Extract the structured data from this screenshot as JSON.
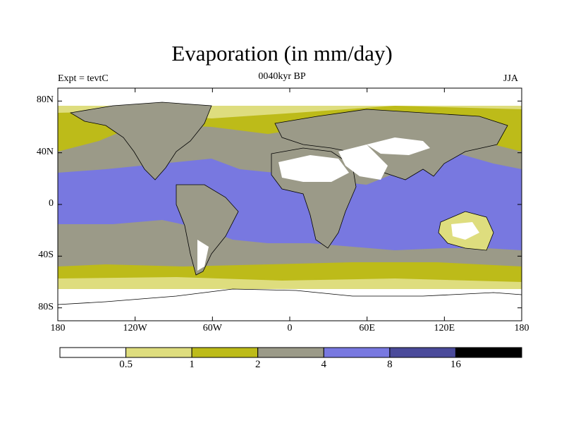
{
  "chart_data": {
    "type": "heatmap",
    "title": "Evaporation (in mm/day)",
    "subtitle": "0040kyr BP",
    "left_label": "Expt = tevtC",
    "right_label": "JJA",
    "projection": "cylindrical equidistant global map",
    "x_ticks": [
      "180",
      "120W",
      "60W",
      "0",
      "60E",
      "120E",
      "180"
    ],
    "x_values": [
      -180,
      -120,
      -60,
      0,
      60,
      120,
      180
    ],
    "y_ticks": [
      "80N",
      "40N",
      "0",
      "40S",
      "80S"
    ],
    "y_values": [
      80,
      40,
      0,
      -40,
      -80
    ],
    "xlim": [
      -180,
      180
    ],
    "ylim": [
      -90,
      90
    ],
    "colorbar": {
      "levels": [
        "0.5",
        "1",
        "2",
        "4",
        "8",
        "16"
      ],
      "colors": [
        "#ffffff",
        "#dedd7e",
        "#bdbb19",
        "#9b9a88",
        "#7878e0",
        "#4a4a9a",
        "#000000"
      ]
    },
    "regions": [
      {
        "name": "tropical oceans",
        "value_range": "4-8"
      },
      {
        "name": "subtropical oceans",
        "value_range": "2-4"
      },
      {
        "name": "mid-latitude oceans",
        "value_range": "1-2"
      },
      {
        "name": "polar regions and deserts",
        "value_range": "<0.5"
      }
    ]
  }
}
